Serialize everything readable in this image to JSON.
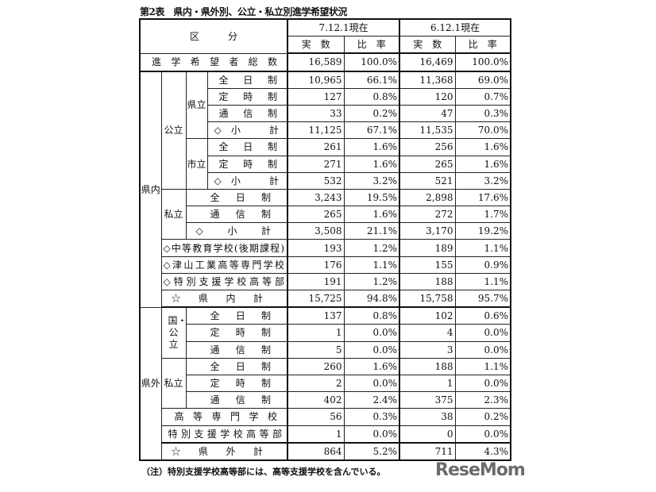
{
  "title": "第2表　県内・県外別、公立・私立別進学希望状況",
  "header": {
    "category": "区　　　分",
    "period1": "7.12.1現在",
    "period2": "6.12.1現在",
    "count": "実　数",
    "ratio": "比　率"
  },
  "groups": {
    "kennai": "県内",
    "kengai": "県外",
    "kouritsu": "公立",
    "kenritsu": "県立",
    "shiritsu_city": "市立",
    "shiritsu": "私立",
    "kokukouritsu": "国・公立",
    "shiritsu2": "私立"
  },
  "rows": [
    {
      "label": "進学希望者総数",
      "v": [
        "16,589",
        "100.0%",
        "16,469",
        "100.0%"
      ]
    },
    {
      "label": "全日制",
      "v": [
        "10,965",
        "66.1%",
        "11,368",
        "69.0%"
      ]
    },
    {
      "label": "定時制",
      "v": [
        "127",
        "0.8%",
        "120",
        "0.7%"
      ]
    },
    {
      "label": "通信制",
      "v": [
        "33",
        "0.2%",
        "47",
        "0.3%"
      ]
    },
    {
      "label": "◇小　計",
      "v": [
        "11,125",
        "67.1%",
        "11,535",
        "70.0%"
      ]
    },
    {
      "label": "全日制",
      "v": [
        "261",
        "1.6%",
        "256",
        "1.6%"
      ]
    },
    {
      "label": "定時制",
      "v": [
        "271",
        "1.6%",
        "265",
        "1.6%"
      ]
    },
    {
      "label": "◇小　計",
      "v": [
        "532",
        "3.2%",
        "521",
        "3.2%"
      ]
    },
    {
      "label": "全日制",
      "v": [
        "3,243",
        "19.5%",
        "2,898",
        "17.6%"
      ]
    },
    {
      "label": "通信制",
      "v": [
        "265",
        "1.6%",
        "272",
        "1.7%"
      ]
    },
    {
      "label": "◇　小　計",
      "v": [
        "3,508",
        "21.1%",
        "3,170",
        "19.2%"
      ]
    },
    {
      "label": "◇中等教育学校(後期課程)",
      "v": [
        "193",
        "1.2%",
        "189",
        "1.1%"
      ]
    },
    {
      "label": "◇津山工業高等専門学校",
      "v": [
        "176",
        "1.1%",
        "155",
        "0.9%"
      ]
    },
    {
      "label": "◇特別支援学校高等部",
      "v": [
        "191",
        "1.2%",
        "188",
        "1.1%"
      ]
    },
    {
      "label": "☆　県　内　計",
      "v": [
        "15,725",
        "94.8%",
        "15,758",
        "95.7%"
      ]
    },
    {
      "label": "全日制",
      "v": [
        "137",
        "0.8%",
        "102",
        "0.6%"
      ]
    },
    {
      "label": "定時制",
      "v": [
        "1",
        "0.0%",
        "4",
        "0.0%"
      ]
    },
    {
      "label": "通信制",
      "v": [
        "5",
        "0.0%",
        "3",
        "0.0%"
      ]
    },
    {
      "label": "全日制",
      "v": [
        "260",
        "1.6%",
        "188",
        "1.1%"
      ]
    },
    {
      "label": "定時制",
      "v": [
        "2",
        "0.0%",
        "1",
        "0.0%"
      ]
    },
    {
      "label": "通信制",
      "v": [
        "402",
        "2.4%",
        "375",
        "2.3%"
      ]
    },
    {
      "label": "高等専門学校",
      "v": [
        "56",
        "0.3%",
        "38",
        "0.2%"
      ]
    },
    {
      "label": "特別支援学校高等部",
      "v": [
        "1",
        "0.0%",
        "0",
        "0.0%"
      ]
    },
    {
      "label": "☆　県　外　計",
      "v": [
        "864",
        "5.2%",
        "711",
        "4.3%"
      ]
    }
  ],
  "note": "（注）特別支援学校高等部には、高等支援学校を含んでいる。",
  "logo": "ReseMom"
}
